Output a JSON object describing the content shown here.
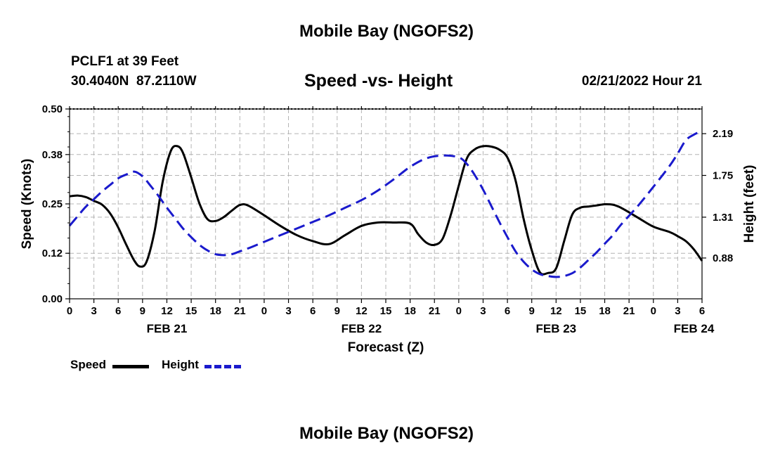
{
  "header": {
    "title": "Mobile Bay (NGOFS2)",
    "station": "PCLF1 at 39 Feet",
    "coords": "30.4040N  87.2110W",
    "subtitle": "Speed -vs- Height",
    "datetime": "02/21/2022 Hour 21",
    "bottom_title": "Mobile Bay (NGOFS2)"
  },
  "legend": {
    "speed_label": "Speed",
    "height_label": "Height"
  },
  "colors": {
    "speed": "#000000",
    "height": "#1a1acc",
    "grid": "#b4b4b4"
  },
  "chart_data": {
    "type": "line",
    "title": "Speed -vs- Height",
    "xlabel": "Forecast (Z)",
    "ylabel": "Speed (Knots)",
    "y2label": "Height (feet)",
    "xlim": [
      0,
      78
    ],
    "ylim": [
      0,
      0.5
    ],
    "y2lim": [
      0.45,
      2.45
    ],
    "x_ticks": [
      0,
      3,
      6,
      9,
      12,
      15,
      18,
      21,
      24,
      27,
      30,
      33,
      36,
      39,
      42,
      45,
      48,
      51,
      54,
      57,
      60,
      63,
      66,
      69,
      72,
      75,
      78
    ],
    "x_tick_labels": [
      "0",
      "3",
      "6",
      "9",
      "12",
      "15",
      "18",
      "21",
      "0",
      "3",
      "6",
      "9",
      "12",
      "15",
      "18",
      "21",
      "0",
      "3",
      "6",
      "9",
      "12",
      "15",
      "18",
      "21",
      "0",
      "3",
      "6"
    ],
    "date_labels": [
      {
        "x": 12,
        "label": "FEB 21"
      },
      {
        "x": 36,
        "label": "FEB 22"
      },
      {
        "x": 60,
        "label": "FEB 23"
      },
      {
        "x": 77,
        "label": "FEB 24"
      }
    ],
    "y_ticks": [
      0.0,
      0.12,
      0.25,
      0.38,
      0.5
    ],
    "y_tick_labels": [
      "0.00",
      "0.12",
      "0.25",
      "0.38",
      "0.50"
    ],
    "y2_ticks": [
      0.88,
      1.31,
      1.75,
      2.19
    ],
    "y2_tick_labels": [
      "0.88",
      "1.31",
      "1.75",
      "2.19"
    ],
    "series": [
      {
        "name": "Speed",
        "axis": "left",
        "style": "solid",
        "x": [
          0,
          1,
          2,
          3,
          4,
          5,
          6,
          7,
          8,
          8.7,
          9.5,
          10.5,
          11.5,
          12.5,
          13.3,
          14,
          15,
          16,
          17,
          18,
          19,
          20,
          21,
          22,
          24,
          26,
          28,
          30,
          32,
          34,
          36,
          38,
          40,
          42,
          43,
          44,
          45,
          46,
          47,
          48,
          49,
          50,
          51,
          52,
          53,
          54,
          55,
          56,
          57,
          58,
          59,
          60,
          61,
          62,
          63,
          64,
          65,
          66,
          67,
          68,
          70,
          72,
          74,
          75,
          76,
          77,
          78
        ],
        "values": [
          0.27,
          0.272,
          0.268,
          0.258,
          0.248,
          0.225,
          0.188,
          0.142,
          0.1,
          0.085,
          0.098,
          0.18,
          0.31,
          0.39,
          0.402,
          0.384,
          0.32,
          0.252,
          0.21,
          0.205,
          0.215,
          0.232,
          0.247,
          0.246,
          0.22,
          0.192,
          0.168,
          0.152,
          0.144,
          0.168,
          0.192,
          0.201,
          0.201,
          0.198,
          0.17,
          0.148,
          0.142,
          0.158,
          0.22,
          0.298,
          0.37,
          0.394,
          0.402,
          0.401,
          0.393,
          0.372,
          0.312,
          0.21,
          0.128,
          0.07,
          0.068,
          0.08,
          0.152,
          0.222,
          0.24,
          0.243,
          0.246,
          0.249,
          0.248,
          0.24,
          0.215,
          0.19,
          0.176,
          0.165,
          0.152,
          0.13,
          0.1
        ]
      },
      {
        "name": "Height",
        "axis": "right",
        "style": "dashed",
        "x": [
          0,
          1,
          2,
          3,
          4,
          5,
          6,
          7,
          8,
          9,
          10,
          11,
          12,
          13,
          14,
          15,
          16,
          17,
          18,
          19,
          20,
          21,
          22,
          24,
          26,
          28,
          30,
          32,
          34,
          36,
          38,
          40,
          42,
          44,
          46,
          48,
          49,
          50,
          51,
          52,
          53,
          54,
          55,
          56,
          57,
          58,
          59,
          60,
          61,
          62,
          63,
          64,
          65,
          66,
          67,
          68,
          70,
          72,
          74,
          75,
          76,
          77,
          78
        ],
        "values": [
          1.22,
          1.32,
          1.42,
          1.5,
          1.58,
          1.65,
          1.72,
          1.76,
          1.79,
          1.74,
          1.64,
          1.53,
          1.41,
          1.3,
          1.19,
          1.1,
          1.02,
          0.96,
          0.92,
          0.91,
          0.92,
          0.95,
          0.98,
          1.05,
          1.12,
          1.19,
          1.26,
          1.33,
          1.41,
          1.49,
          1.59,
          1.71,
          1.84,
          1.93,
          1.96,
          1.94,
          1.87,
          1.75,
          1.6,
          1.43,
          1.26,
          1.1,
          0.95,
          0.84,
          0.76,
          0.71,
          0.69,
          0.68,
          0.69,
          0.72,
          0.78,
          0.86,
          0.94,
          1.03,
          1.12,
          1.23,
          1.42,
          1.63,
          1.85,
          1.98,
          2.12,
          2.18,
          2.22
        ]
      }
    ],
    "legend_position": "bottom-left",
    "grid": true
  }
}
